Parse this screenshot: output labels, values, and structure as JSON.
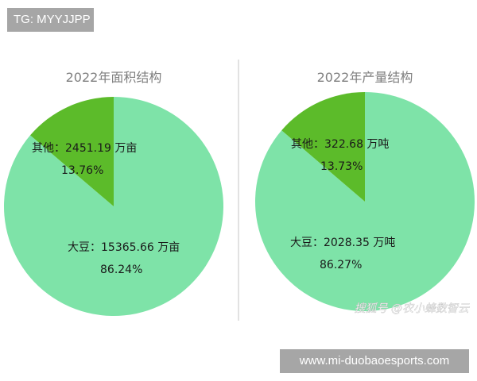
{
  "tags": {
    "top_left": "TG: MYYJJPP",
    "bottom_right": "www.mi-duobaoesports.com"
  },
  "watermark": "搜狐号 @农小蜂数智云",
  "colors": {
    "soybean": "#7ee3a8",
    "other": "#5cbb2a",
    "title": "#7f7f7f",
    "label": "#1a1a1a"
  },
  "chart_data": [
    {
      "type": "pie",
      "title": "2022年面积结构",
      "unit": "万亩",
      "slices": [
        {
          "name": "大豆",
          "value": 15365.66,
          "percent": "86.24%",
          "label": "大豆：15365.66 万亩"
        },
        {
          "name": "其他",
          "value": 2451.19,
          "percent": "13.76%",
          "label": "其他：2451.19 万亩"
        }
      ]
    },
    {
      "type": "pie",
      "title": "2022年产量结构",
      "unit": "万吨",
      "slices": [
        {
          "name": "大豆",
          "value": 2028.35,
          "percent": "86.27%",
          "label": "大豆：2028.35 万吨"
        },
        {
          "name": "其他",
          "value": 322.68,
          "percent": "13.73%",
          "label": "其他：322.68 万吨"
        }
      ]
    }
  ]
}
